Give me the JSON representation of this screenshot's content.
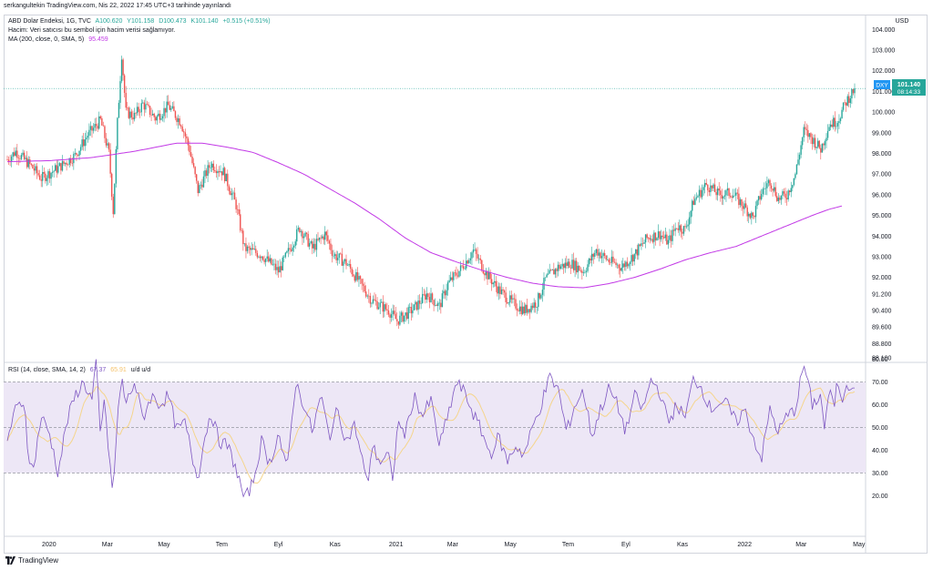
{
  "header": {
    "published": "serkangultekin TradingView.com, Nis 22, 2022 17:45 UTC+3 tarihinde yayınlandı"
  },
  "legend": {
    "symbol": "ABD Dolar Endeksi, 1G, TVC",
    "open": "A100.620",
    "high": "Y101.158",
    "low": "D100.473",
    "close": "K101.140",
    "change": "+0.515 (+0.51%)",
    "volume_note": "Hacim: Veri satıcısı bu sembol için hacim verisi sağlamıyor.",
    "ma_label": "MA (200, close, 0, SMA, 5)",
    "ma_value": "95.459",
    "rsi_label": "RSI (14, close, SMA, 14, 2)",
    "rsi_value": "67.37",
    "rsi_ma_value": "65.91",
    "rsi_extra": "u/d u/d"
  },
  "currency": "USD",
  "last_price": {
    "symbol": "DXY",
    "price": "101.140",
    "countdown": "08:14:33"
  },
  "footer": {
    "brand": "TradingView"
  },
  "colors": {
    "up": "#26a69a",
    "down": "#ef5350",
    "ma": "#c239e6",
    "rsi": "#7e57c2",
    "rsi_ma": "#f5d58c",
    "band": "#ede7f6"
  },
  "chart_data": {
    "type": "candlestick",
    "price_axis": {
      "ticks": [
        "104.000",
        "103.000",
        "102.000",
        "101.000",
        "100.000",
        "99.000",
        "98.000",
        "97.000",
        "96.000",
        "95.000",
        "94.000",
        "93.000",
        "92.000",
        "91.200",
        "90.400",
        "89.600",
        "88.800",
        "88.100"
      ],
      "tick_values": [
        104,
        103,
        102,
        101,
        100,
        99,
        98,
        97,
        96,
        95,
        94,
        93,
        92,
        91.2,
        90.4,
        89.6,
        88.8,
        88.1
      ]
    },
    "x_axis": {
      "labels": [
        "2020",
        "Mar",
        "May",
        "Tem",
        "Eyl",
        "Kas",
        "2021",
        "Mar",
        "May",
        "Tem",
        "Eyl",
        "Kas",
        "2022",
        "Mar",
        "May"
      ],
      "positions_t": [
        0.0493,
        0.1181,
        0.1849,
        0.2531,
        0.32,
        0.3868,
        0.4588,
        0.5256,
        0.5937,
        0.6618,
        0.73,
        0.7968,
        0.8701,
        0.9369,
        1.0051
      ]
    },
    "price_anchors": [
      [
        0,
        97.7
      ],
      [
        0.01,
        98.1
      ],
      [
        0.03,
        97.3
      ],
      [
        0.04,
        96.8
      ],
      [
        0.06,
        97.3
      ],
      [
        0.08,
        97.9
      ],
      [
        0.095,
        98.9
      ],
      [
        0.11,
        99.6
      ],
      [
        0.12,
        98.0
      ],
      [
        0.125,
        95.2
      ],
      [
        0.13,
        99.5
      ],
      [
        0.135,
        102.8
      ],
      [
        0.14,
        100.0
      ],
      [
        0.15,
        99.8
      ],
      [
        0.16,
        100.4
      ],
      [
        0.175,
        99.7
      ],
      [
        0.19,
        100.3
      ],
      [
        0.205,
        99.5
      ],
      [
        0.215,
        98.2
      ],
      [
        0.225,
        96.2
      ],
      [
        0.24,
        97.5
      ],
      [
        0.255,
        97.1
      ],
      [
        0.27,
        95.5
      ],
      [
        0.28,
        93.4
      ],
      [
        0.3,
        93.1
      ],
      [
        0.32,
        92.3
      ],
      [
        0.335,
        93.5
      ],
      [
        0.345,
        94.4
      ],
      [
        0.36,
        93.4
      ],
      [
        0.375,
        94.1
      ],
      [
        0.385,
        93.1
      ],
      [
        0.4,
        92.7
      ],
      [
        0.415,
        91.8
      ],
      [
        0.43,
        90.9
      ],
      [
        0.45,
        90.4
      ],
      [
        0.46,
        89.9
      ],
      [
        0.48,
        90.5
      ],
      [
        0.495,
        91.2
      ],
      [
        0.51,
        90.6
      ],
      [
        0.52,
        91.7
      ],
      [
        0.535,
        92.4
      ],
      [
        0.55,
        93.3
      ],
      [
        0.565,
        92.2
      ],
      [
        0.58,
        91.4
      ],
      [
        0.595,
        90.8
      ],
      [
        0.61,
        90.4
      ],
      [
        0.625,
        90.8
      ],
      [
        0.635,
        91.9
      ],
      [
        0.65,
        92.5
      ],
      [
        0.665,
        92.7
      ],
      [
        0.68,
        92.3
      ],
      [
        0.695,
        93.3
      ],
      [
        0.71,
        92.8
      ],
      [
        0.725,
        92.5
      ],
      [
        0.74,
        93.1
      ],
      [
        0.755,
        93.9
      ],
      [
        0.77,
        94.1
      ],
      [
        0.78,
        93.7
      ],
      [
        0.79,
        94.5
      ],
      [
        0.8,
        94.3
      ],
      [
        0.81,
        95.7
      ],
      [
        0.825,
        96.5
      ],
      [
        0.84,
        96.0
      ],
      [
        0.855,
        96.1
      ],
      [
        0.87,
        95.4
      ],
      [
        0.88,
        94.9
      ],
      [
        0.89,
        96.1
      ],
      [
        0.9,
        96.7
      ],
      [
        0.91,
        95.8
      ],
      [
        0.92,
        96.0
      ],
      [
        0.93,
        97.0
      ],
      [
        0.94,
        99.1
      ],
      [
        0.95,
        98.7
      ],
      [
        0.96,
        98.2
      ],
      [
        0.97,
        99.4
      ],
      [
        0.98,
        99.6
      ],
      [
        0.99,
        100.5
      ],
      [
        1.0,
        101.14
      ]
    ],
    "ma200_anchors": [
      [
        0,
        97.6
      ],
      [
        0.05,
        97.65
      ],
      [
        0.1,
        97.8
      ],
      [
        0.15,
        98.1
      ],
      [
        0.2,
        98.5
      ],
      [
        0.23,
        98.5
      ],
      [
        0.26,
        98.3
      ],
      [
        0.29,
        98.05
      ],
      [
        0.32,
        97.55
      ],
      [
        0.35,
        97.0
      ],
      [
        0.38,
        96.3
      ],
      [
        0.41,
        95.6
      ],
      [
        0.44,
        94.8
      ],
      [
        0.47,
        93.9
      ],
      [
        0.5,
        93.2
      ],
      [
        0.53,
        92.75
      ],
      [
        0.56,
        92.35
      ],
      [
        0.59,
        92.0
      ],
      [
        0.62,
        91.72
      ],
      [
        0.65,
        91.55
      ],
      [
        0.68,
        91.5
      ],
      [
        0.71,
        91.7
      ],
      [
        0.74,
        92.0
      ],
      [
        0.77,
        92.4
      ],
      [
        0.8,
        92.85
      ],
      [
        0.83,
        93.2
      ],
      [
        0.86,
        93.5
      ],
      [
        0.89,
        94.0
      ],
      [
        0.92,
        94.5
      ],
      [
        0.95,
        95.0
      ],
      [
        0.97,
        95.3
      ],
      [
        0.985,
        95.459
      ]
    ],
    "rsi_axis": {
      "ticks": [
        "80.00",
        "70.00",
        "60.00",
        "50.00",
        "40.00",
        "30.00",
        "20.00"
      ],
      "tick_values": [
        80,
        70,
        60,
        50,
        40,
        30,
        20
      ],
      "upper": 70,
      "lower": 30,
      "middle": 50
    },
    "rsi_anchors": [
      [
        0,
        45
      ],
      [
        0.01,
        58
      ],
      [
        0.02,
        62
      ],
      [
        0.025,
        38
      ],
      [
        0.03,
        30
      ],
      [
        0.04,
        55
      ],
      [
        0.05,
        47
      ],
      [
        0.06,
        30
      ],
      [
        0.07,
        52
      ],
      [
        0.08,
        64
      ],
      [
        0.09,
        70
      ],
      [
        0.1,
        62
      ],
      [
        0.105,
        80
      ],
      [
        0.11,
        44
      ],
      [
        0.115,
        65
      ],
      [
        0.12,
        35
      ],
      [
        0.125,
        22
      ],
      [
        0.13,
        54
      ],
      [
        0.135,
        72
      ],
      [
        0.14,
        60
      ],
      [
        0.15,
        70
      ],
      [
        0.16,
        54
      ],
      [
        0.17,
        64
      ],
      [
        0.18,
        60
      ],
      [
        0.19,
        64
      ],
      [
        0.2,
        49
      ],
      [
        0.21,
        52
      ],
      [
        0.22,
        34
      ],
      [
        0.225,
        28
      ],
      [
        0.23,
        40
      ],
      [
        0.24,
        57
      ],
      [
        0.25,
        44
      ],
      [
        0.26,
        42
      ],
      [
        0.27,
        32
      ],
      [
        0.28,
        18
      ],
      [
        0.29,
        26
      ],
      [
        0.3,
        44
      ],
      [
        0.31,
        34
      ],
      [
        0.32,
        48
      ],
      [
        0.33,
        30
      ],
      [
        0.34,
        70
      ],
      [
        0.35,
        60
      ],
      [
        0.36,
        48
      ],
      [
        0.37,
        64
      ],
      [
        0.38,
        46
      ],
      [
        0.39,
        58
      ],
      [
        0.4,
        44
      ],
      [
        0.41,
        51
      ],
      [
        0.42,
        34
      ],
      [
        0.425,
        24
      ],
      [
        0.43,
        42
      ],
      [
        0.44,
        35
      ],
      [
        0.45,
        38
      ],
      [
        0.455,
        24
      ],
      [
        0.46,
        52
      ],
      [
        0.47,
        47
      ],
      [
        0.48,
        64
      ],
      [
        0.49,
        55
      ],
      [
        0.5,
        62
      ],
      [
        0.51,
        42
      ],
      [
        0.52,
        55
      ],
      [
        0.53,
        70
      ],
      [
        0.54,
        65
      ],
      [
        0.55,
        56
      ],
      [
        0.56,
        48
      ],
      [
        0.57,
        38
      ],
      [
        0.58,
        46
      ],
      [
        0.59,
        35
      ],
      [
        0.6,
        42
      ],
      [
        0.61,
        38
      ],
      [
        0.62,
        50
      ],
      [
        0.63,
        60
      ],
      [
        0.64,
        72
      ],
      [
        0.65,
        67
      ],
      [
        0.66,
        48
      ],
      [
        0.67,
        60
      ],
      [
        0.68,
        66
      ],
      [
        0.69,
        46
      ],
      [
        0.7,
        58
      ],
      [
        0.71,
        67
      ],
      [
        0.72,
        60
      ],
      [
        0.73,
        48
      ],
      [
        0.74,
        64
      ],
      [
        0.75,
        58
      ],
      [
        0.76,
        71
      ],
      [
        0.77,
        66
      ],
      [
        0.78,
        52
      ],
      [
        0.79,
        60
      ],
      [
        0.8,
        54
      ],
      [
        0.81,
        72
      ],
      [
        0.82,
        67
      ],
      [
        0.83,
        58
      ],
      [
        0.84,
        61
      ],
      [
        0.85,
        60
      ],
      [
        0.86,
        52
      ],
      [
        0.87,
        58
      ],
      [
        0.88,
        46
      ],
      [
        0.89,
        36
      ],
      [
        0.9,
        58
      ],
      [
        0.91,
        48
      ],
      [
        0.92,
        55
      ],
      [
        0.93,
        58
      ],
      [
        0.94,
        78
      ],
      [
        0.95,
        60
      ],
      [
        0.96,
        64
      ],
      [
        0.965,
        48
      ],
      [
        0.97,
        68
      ],
      [
        0.975,
        58
      ],
      [
        0.98,
        71
      ],
      [
        0.985,
        62
      ],
      [
        0.99,
        70
      ],
      [
        1.0,
        67.37
      ]
    ]
  }
}
